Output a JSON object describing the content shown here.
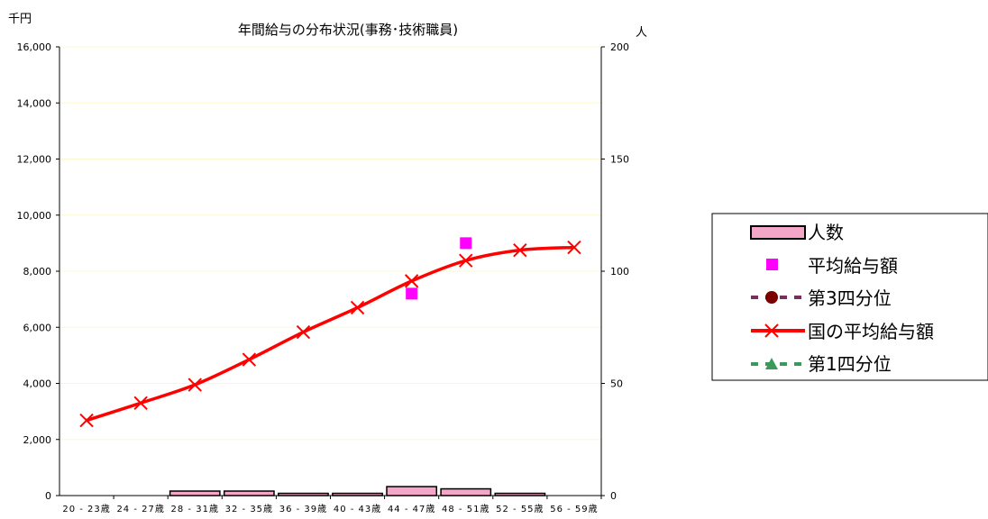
{
  "chart_data": {
    "type": "bar",
    "title": "年間給与の分布状況(事務･技術職員)",
    "left_axis_unit": "千円",
    "right_axis_unit": "人",
    "left_ylim": [
      0,
      16000
    ],
    "right_ylim": [
      0,
      200
    ],
    "left_ticks": [
      "0",
      "2,000",
      "4,000",
      "6,000",
      "8,000",
      "10,000",
      "12,000",
      "14,000",
      "16,000"
    ],
    "right_ticks": [
      "0",
      "50",
      "100",
      "150",
      "200"
    ],
    "categories": [
      "20 - 23歳",
      "24 - 27歳",
      "28 - 31歳",
      "32 - 35歳",
      "36 - 39歳",
      "40 - 43歳",
      "44 - 47歳",
      "48 - 51歳",
      "52 - 55歳",
      "56 - 59歳"
    ],
    "grid": true,
    "legend_position": "right",
    "series": [
      {
        "name": "人数",
        "kind": "bar",
        "axis": "right",
        "color": "#f4a6c8",
        "values": [
          0,
          0,
          2,
          2,
          1,
          1,
          4,
          3,
          1,
          0
        ]
      },
      {
        "name": "平均給与額",
        "kind": "marker-square",
        "axis": "left",
        "color": "#ff00ff",
        "values": [
          null,
          null,
          null,
          null,
          null,
          null,
          7200,
          9000,
          null,
          null
        ]
      },
      {
        "name": "第3四分位",
        "kind": "dashed-circle",
        "axis": "left",
        "color": "#7b2d5f",
        "marker_color": "#7b0000",
        "values": [
          null,
          null,
          null,
          null,
          null,
          null,
          null,
          null,
          null,
          null
        ]
      },
      {
        "name": "国の平均給与額",
        "kind": "line-x",
        "axis": "left",
        "color": "#ff0000",
        "values": [
          2680,
          3300,
          3950,
          4850,
          5830,
          6700,
          7650,
          8380,
          8750,
          8850
        ]
      },
      {
        "name": "第1四分位",
        "kind": "dashed-triangle",
        "axis": "left",
        "color": "#3a9a5a",
        "values": [
          null,
          null,
          null,
          null,
          null,
          null,
          null,
          null,
          null,
          null
        ]
      }
    ]
  }
}
